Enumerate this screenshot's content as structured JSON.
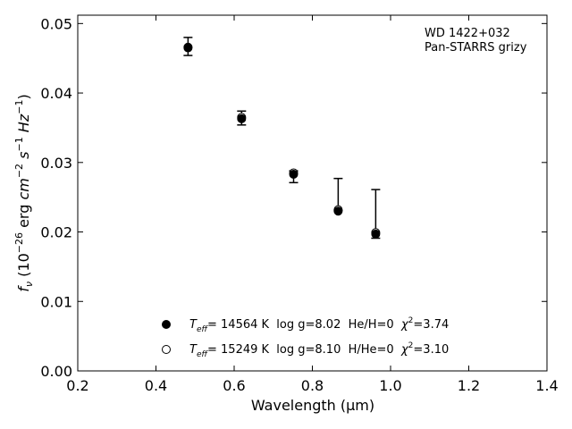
{
  "chart_data": {
    "type": "scatter",
    "xlabel": "Wavelength (μm)",
    "ylabel": "f_ν (10^-26 erg cm^-2 s^-1 Hz^-1)",
    "xlim": [
      0.2,
      1.4
    ],
    "ylim": [
      0.0,
      0.0512
    ],
    "xticks": [
      0.2,
      0.4,
      0.6,
      0.8,
      1.0,
      1.2,
      1.4
    ],
    "xtick_labels": [
      "0.2",
      "0.4",
      "0.6",
      "0.8",
      "1.0",
      "1.2",
      "1.4"
    ],
    "yticks": [
      0.0,
      0.01,
      0.02,
      0.03,
      0.04,
      0.05
    ],
    "ytick_labels": [
      "0.00",
      "0.01",
      "0.02",
      "0.03",
      "0.04",
      "0.05"
    ],
    "grid": false,
    "annotation": [
      "WD 1422+032",
      "Pan-STARRS grizy"
    ],
    "observed": {
      "x": [
        0.482,
        0.619,
        0.752,
        0.866,
        0.962
      ],
      "y_low": [
        0.0454,
        0.0354,
        0.0271,
        0.0231,
        0.0191
      ],
      "y_high": [
        0.048,
        0.0374,
        0.0288,
        0.0277,
        0.0261
      ]
    },
    "series": [
      {
        "name": "T_eff= 14564 K  log g=8.02  He/H=0  χ²=3.74",
        "marker": "filled-circle",
        "x": [
          0.482,
          0.619,
          0.752,
          0.866,
          0.962
        ],
        "y": [
          0.0465,
          0.0363,
          0.0283,
          0.023,
          0.0197
        ]
      },
      {
        "name": "T_eff= 15249 K  log g=8.10  H/He=0  χ²=3.10",
        "marker": "open-circle",
        "x": [
          0.482,
          0.619,
          0.752,
          0.866,
          0.962
        ],
        "y": [
          0.0466,
          0.0365,
          0.0285,
          0.0232,
          0.0199
        ]
      }
    ],
    "legend": {
      "placement": "lower-center",
      "entries": [
        {
          "marker": "filled-circle",
          "teff_symbol": "T",
          "teff_sub": "eff",
          "text": "= 14564 K  log g=8.02  He/H=0  ",
          "chi": "χ",
          "chi_sup": "2",
          "chi_val": "=3.74"
        },
        {
          "marker": "open-circle",
          "teff_symbol": "T",
          "teff_sub": "eff",
          "text": "= 15249 K  log g=8.10  H/He=0  ",
          "chi": "χ",
          "chi_sup": "2",
          "chi_val": "=3.10"
        }
      ]
    }
  }
}
